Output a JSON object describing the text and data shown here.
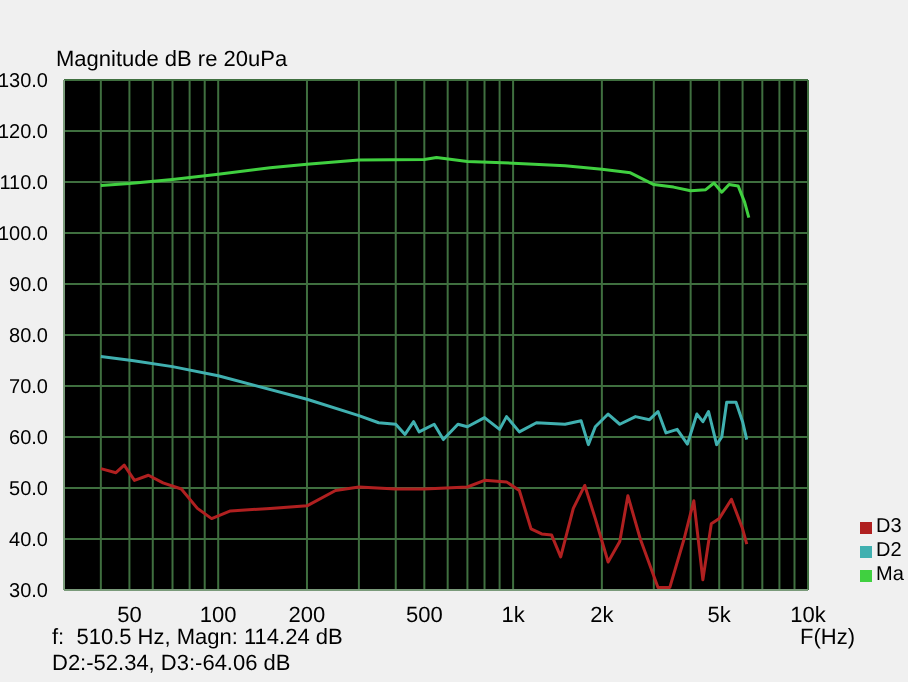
{
  "chart_data": {
    "type": "line",
    "ylabel": "Magnitude dB re 20uPa",
    "xlabel": "F(Hz)",
    "annotations": [
      "f:  510.5 Hz, Magn: 114.24 dB",
      "D2:-52.34, D3:-64.06 dB"
    ],
    "log": "x",
    "grid": true,
    "legend": "bottom right",
    "xlim": [
      30,
      10000
    ],
    "xticks": [
      {
        "value": 40,
        "label": null
      },
      50,
      {
        "value": 60,
        "label": null
      },
      {
        "value": 70,
        "label": null
      },
      {
        "value": 80,
        "label": null
      },
      {
        "value": 90,
        "label": null
      },
      100,
      200,
      {
        "value": 300,
        "label": null
      },
      {
        "value": 400,
        "label": null
      },
      500,
      {
        "value": 600,
        "label": null
      },
      {
        "value": 700,
        "label": null
      },
      {
        "value": 800,
        "label": null
      },
      {
        "value": 900,
        "label": null
      },
      {
        "value": 1000,
        "label": "1k"
      },
      {
        "value": 2000,
        "label": "2k"
      },
      {
        "value": 3000,
        "label": null
      },
      {
        "value": 4000,
        "label": null
      },
      {
        "value": 5000,
        "label": "5k"
      },
      {
        "value": 6000,
        "label": null
      },
      {
        "value": 7000,
        "label": null
      },
      {
        "value": 8000,
        "label": null
      },
      {
        "value": 9000,
        "label": null
      },
      {
        "value": 10000,
        "label": "10k"
      }
    ],
    "ylim": [
      30,
      130
    ],
    "yticks": [
      {
        "value": 30,
        "label": "30.0"
      },
      {
        "value": 40,
        "label": "40.0"
      },
      {
        "value": 50,
        "label": "50.0"
      },
      {
        "value": 60,
        "label": "60.0"
      },
      {
        "value": 70,
        "label": "70.0"
      },
      {
        "value": 80,
        "label": "80.0"
      },
      {
        "value": 90,
        "label": "90.0"
      },
      {
        "value": 100,
        "label": "100.0"
      },
      {
        "value": 110,
        "label": "110.0"
      },
      {
        "value": 120,
        "label": "120.0"
      },
      {
        "value": 130,
        "label": "130.0"
      }
    ],
    "series": [
      {
        "name": "D3",
        "color": "#b02020",
        "x": [
          40,
          45,
          48,
          52,
          58,
          65,
          75,
          85,
          95,
          110,
          150,
          200,
          250,
          300,
          400,
          500,
          700,
          800,
          950,
          1050,
          1150,
          1250,
          1350,
          1450,
          1600,
          1750,
          1900,
          2100,
          2300,
          2450,
          2700,
          3100,
          3400,
          3800,
          4100,
          4400,
          4700,
          5000,
          5500,
          6000,
          6200
        ],
        "values": [
          53.8,
          53,
          54.5,
          51.5,
          52.5,
          51,
          49.8,
          46,
          44,
          45.5,
          46,
          46.5,
          49.5,
          50.2,
          49.8,
          49.8,
          50.2,
          51.5,
          51.2,
          49.5,
          42,
          41,
          40.8,
          36.5,
          46,
          50.5,
          44,
          35.5,
          39.5,
          48.5,
          40,
          30.5,
          30.5,
          40,
          47.5,
          32,
          43,
          44,
          47.8,
          42,
          39
        ]
      },
      {
        "name": "D2",
        "color": "#40b0b0",
        "x": [
          40,
          51,
          70,
          100,
          200,
          300,
          350,
          400,
          430,
          460,
          480,
          540,
          580,
          650,
          700,
          800,
          900,
          950,
          1050,
          1200,
          1500,
          1700,
          1800,
          1900,
          2100,
          2300,
          2600,
          2900,
          3100,
          3300,
          3600,
          3900,
          4200,
          4400,
          4600,
          4900,
          5100,
          5300,
          5700,
          6000,
          6200
        ],
        "values": [
          75.8,
          75,
          73.8,
          72,
          67.4,
          64.2,
          62.8,
          62.5,
          60.5,
          63,
          61,
          62.5,
          59.5,
          62.5,
          62,
          63.8,
          61.5,
          64,
          61,
          62.8,
          62.5,
          63.2,
          58.5,
          62,
          64.5,
          62.5,
          64,
          63.4,
          65,
          60.8,
          61.5,
          58.6,
          64.5,
          63,
          65,
          58.5,
          60,
          66.8,
          66.8,
          63,
          59.5
        ]
      },
      {
        "name": "Ma",
        "color": "#40d040",
        "x": [
          40,
          50,
          70,
          100,
          150,
          200,
          300,
          500,
          550,
          700,
          1000,
          1500,
          2000,
          2500,
          3000,
          3500,
          4000,
          4500,
          4800,
          5100,
          5400,
          5800,
          6100,
          6300
        ],
        "values": [
          109.3,
          109.7,
          110.5,
          111.5,
          112.8,
          113.5,
          114.3,
          114.4,
          114.8,
          114,
          113.7,
          113.2,
          112.5,
          111.8,
          109.5,
          109,
          108.3,
          108.5,
          109.8,
          108,
          109.5,
          109.2,
          106,
          103
        ]
      }
    ]
  }
}
